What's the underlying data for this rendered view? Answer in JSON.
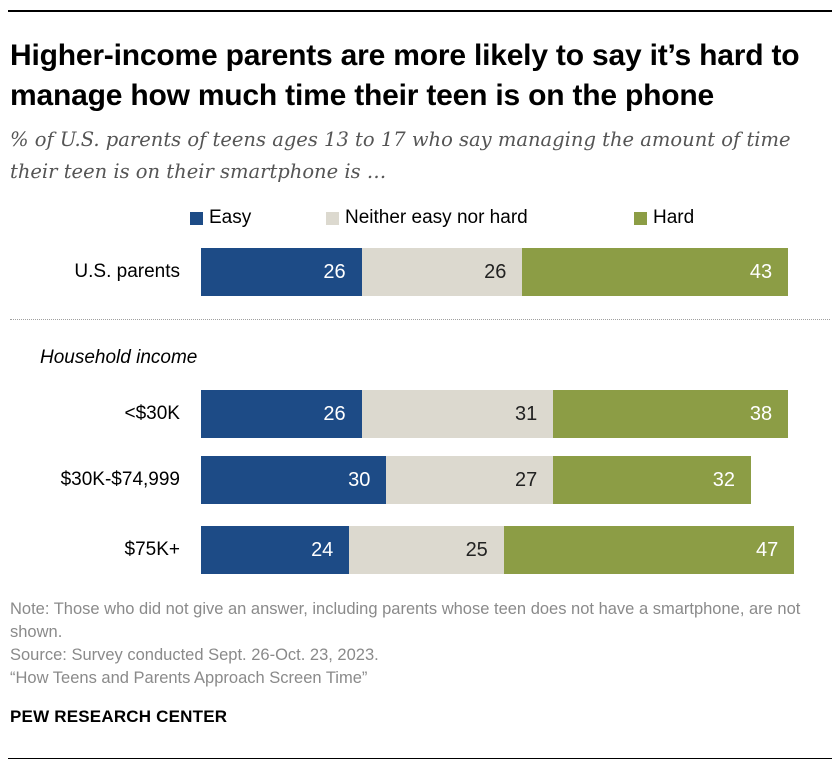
{
  "title": "Higher-income parents are more likely to say it’s hard to manage how much time their teen is on the phone",
  "subtitle": "% of U.S. parents of teens ages 13 to 17 who say managing the amount of time their teen is on their smartphone is …",
  "colors": {
    "easy": "#1d4b86",
    "neither": "#dcd9cf",
    "hard": "#8c9d45"
  },
  "chart_data": {
    "type": "bar",
    "orientation": "horizontal",
    "stacked": true,
    "categories": [
      "U.S. parents",
      "<$30K",
      "$30K-$74,999",
      "$75K+"
    ],
    "group_label": "Household income",
    "series": [
      {
        "name": "Easy",
        "values": [
          26,
          26,
          30,
          24
        ]
      },
      {
        "name": "Neither easy nor hard",
        "values": [
          26,
          31,
          27,
          25
        ]
      },
      {
        "name": "Hard",
        "values": [
          43,
          38,
          32,
          47
        ]
      }
    ],
    "xlim": [
      0,
      100
    ],
    "legend_position": "top"
  },
  "notes": [
    "Note: Those who did not give an answer, including parents whose teen does not have a smartphone, are not shown.",
    "Source: Survey conducted Sept. 26-Oct. 23, 2023.",
    "“How Teens and Parents Approach Screen Time”"
  ],
  "brand": "PEW RESEARCH CENTER"
}
